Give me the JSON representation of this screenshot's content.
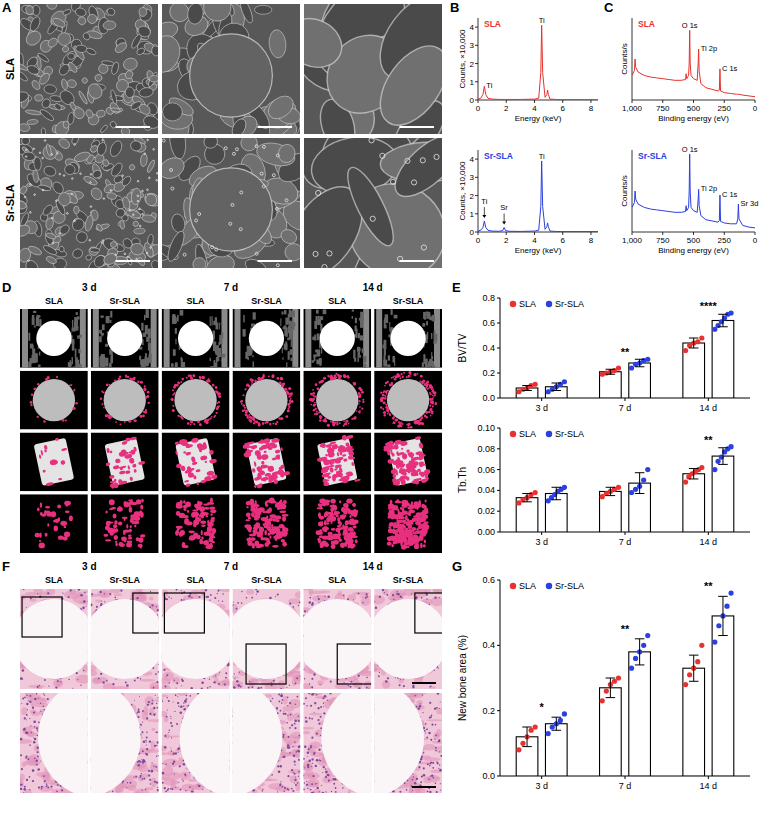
{
  "figure": {
    "panel_labels": [
      "A",
      "B",
      "C",
      "D",
      "E",
      "F",
      "G"
    ],
    "sem": {
      "rows": [
        "SLA",
        "Sr-SLA"
      ]
    },
    "ct": {
      "timepoints": [
        "3 d",
        "7 d",
        "14 d"
      ],
      "groups": [
        "SLA",
        "Sr-SLA"
      ]
    },
    "he": {
      "timepoints": [
        "3 d",
        "7 d",
        "14 d"
      ],
      "groups": [
        "SLA",
        "Sr-SLA"
      ]
    }
  },
  "chart_data": [
    {
      "type": "line",
      "title": "SLA",
      "color": "#e8322f",
      "x_label": "Energy (keV)",
      "y_label": "Counts, ×10,000",
      "x": [
        0,
        0.2,
        0.35,
        0.45,
        0.55,
        0.7,
        1,
        1.5,
        1.75,
        1.85,
        1.95,
        2.2,
        3,
        4,
        4.3,
        4.45,
        4.51,
        4.58,
        4.75,
        4.88,
        4.93,
        4.98,
        5.1,
        5.5,
        6,
        7,
        8,
        8.5
      ],
      "values": [
        0.05,
        0.1,
        0.3,
        0.75,
        0.3,
        0.1,
        0.05,
        0.03,
        0.03,
        0.03,
        0.03,
        0.03,
        0.03,
        0.05,
        0.1,
        1.5,
        4.1,
        1.5,
        0.15,
        0.3,
        0.55,
        0.3,
        0.05,
        0.03,
        0.02,
        0.02,
        0.02,
        0.02
      ],
      "xlim": [
        0,
        8.5
      ],
      "xticks": [
        0,
        2,
        4,
        6,
        8
      ],
      "ylim": [
        0,
        4.5
      ],
      "yticks": [
        0,
        1,
        2,
        3,
        4
      ],
      "annotations": [
        {
          "x": 0.45,
          "text": "Ti"
        },
        {
          "x": 4.51,
          "text": "Ti"
        }
      ]
    },
    {
      "type": "line",
      "title": "Sr-SLA",
      "color": "#2b40e0",
      "x_label": "Energy (keV)",
      "y_label": "Counts, ×10,000",
      "x": [
        0,
        0.2,
        0.35,
        0.45,
        0.55,
        0.7,
        1,
        1.5,
        1.75,
        1.85,
        1.95,
        2.2,
        3,
        4,
        4.3,
        4.45,
        4.51,
        4.58,
        4.75,
        4.88,
        4.93,
        4.98,
        5.1,
        5.5,
        6,
        7,
        8,
        8.5
      ],
      "values": [
        0.05,
        0.1,
        0.25,
        0.6,
        0.25,
        0.1,
        0.05,
        0.04,
        0.08,
        0.25,
        0.08,
        0.04,
        0.03,
        0.05,
        0.1,
        1.4,
        3.9,
        1.4,
        0.15,
        0.3,
        0.5,
        0.3,
        0.05,
        0.03,
        0.02,
        0.02,
        0.02,
        0.02
      ],
      "xlim": [
        0,
        8.5
      ],
      "xticks": [
        0,
        2,
        4,
        6,
        8
      ],
      "ylim": [
        0,
        4.5
      ],
      "yticks": [
        0,
        1,
        2,
        3,
        4
      ],
      "annotations": [
        {
          "x": 0.45,
          "text": "Ti"
        },
        {
          "x": 1.85,
          "text": "Sr"
        },
        {
          "x": 4.51,
          "text": "Ti"
        }
      ]
    },
    {
      "type": "line",
      "title": "SLA",
      "color": "#e8322f",
      "x_label": "Binding energy (eV)",
      "y_label": "Counts/s",
      "x": [
        1000,
        980,
        975,
        970,
        950,
        900,
        850,
        800,
        750,
        700,
        650,
        600,
        565,
        560,
        555,
        540,
        535,
        531,
        527,
        520,
        500,
        470,
        462,
        458,
        454,
        440,
        400,
        300,
        290,
        285,
        280,
        250,
        200,
        150,
        140,
        135,
        130,
        100,
        50,
        0
      ],
      "values": [
        0.3,
        0.36,
        0.5,
        0.4,
        0.34,
        0.3,
        0.28,
        0.27,
        0.26,
        0.25,
        0.24,
        0.24,
        0.25,
        0.32,
        0.26,
        0.3,
        0.45,
        0.85,
        0.45,
        0.3,
        0.26,
        0.24,
        0.45,
        0.62,
        0.35,
        0.2,
        0.15,
        0.11,
        0.12,
        0.38,
        0.11,
        0.09,
        0.08,
        0.07,
        0.07,
        0.07,
        0.07,
        0.06,
        0.05,
        0.04
      ],
      "xlim": [
        1000,
        0
      ],
      "xticks": [
        {
          "value": 1000,
          "label": "1,000"
        },
        750,
        500,
        250,
        0
      ],
      "ylim": [
        0,
        1
      ],
      "tick_labels": "x",
      "annotations": [
        {
          "x": 531,
          "text": "O 1s"
        },
        {
          "x": 458,
          "text": "Ti 2p"
        },
        {
          "x": 285,
          "text": "C 1s"
        }
      ]
    },
    {
      "type": "line",
      "title": "Sr-SLA",
      "color": "#2b40e0",
      "x_label": "Binding energy (eV)",
      "y_label": "Counts/s",
      "x": [
        1000,
        980,
        975,
        970,
        950,
        900,
        850,
        800,
        750,
        700,
        650,
        600,
        565,
        560,
        555,
        540,
        535,
        531,
        527,
        520,
        500,
        470,
        462,
        458,
        454,
        440,
        400,
        300,
        290,
        285,
        280,
        250,
        200,
        150,
        140,
        135,
        130,
        100,
        50,
        0
      ],
      "values": [
        0.3,
        0.36,
        0.5,
        0.4,
        0.34,
        0.3,
        0.28,
        0.27,
        0.26,
        0.25,
        0.24,
        0.24,
        0.25,
        0.32,
        0.26,
        0.3,
        0.5,
        0.95,
        0.5,
        0.3,
        0.26,
        0.24,
        0.4,
        0.52,
        0.32,
        0.2,
        0.15,
        0.12,
        0.14,
        0.45,
        0.13,
        0.11,
        0.1,
        0.1,
        0.16,
        0.34,
        0.16,
        0.08,
        0.06,
        0.05
      ],
      "xlim": [
        1000,
        0
      ],
      "xticks": [
        {
          "value": 1000,
          "label": "1,000"
        },
        750,
        500,
        250,
        0
      ],
      "ylim": [
        0,
        1
      ],
      "tick_labels": "x",
      "annotations": [
        {
          "x": 531,
          "text": "O 1s"
        },
        {
          "x": 458,
          "text": "Ti 2p"
        },
        {
          "x": 285,
          "text": "C 1s"
        },
        {
          "x": 135,
          "text": "Sr 3d"
        }
      ]
    },
    {
      "type": "bar",
      "y_label": "BV/TV",
      "categories": [
        "3 d",
        "7 d",
        "14 d"
      ],
      "ylim": [
        0,
        0.8
      ],
      "yticks": [
        {
          "value": 0,
          "label": "0.0"
        },
        0.2,
        0.4,
        0.6,
        0.8
      ],
      "legend": "top-left",
      "series": [
        {
          "name": "SLA",
          "color": "#e8322f",
          "values": [
            0.08,
            0.21,
            0.44
          ],
          "errors": [
            0.02,
            0.02,
            0.04
          ],
          "points": [
            [
              0.05,
              0.07,
              0.08,
              0.1,
              0.11
            ],
            [
              0.19,
              0.2,
              0.21,
              0.22,
              0.24
            ],
            [
              0.38,
              0.42,
              0.44,
              0.45,
              0.48
            ]
          ]
        },
        {
          "name": "Sr-SLA",
          "color": "#2b40e0",
          "values": [
            0.09,
            0.28,
            0.62
          ],
          "errors": [
            0.03,
            0.03,
            0.05
          ],
          "points": [
            [
              0.05,
              0.07,
              0.09,
              0.11,
              0.13
            ],
            [
              0.24,
              0.27,
              0.28,
              0.3,
              0.31
            ],
            [
              0.55,
              0.58,
              0.61,
              0.64,
              0.67,
              0.68
            ]
          ]
        }
      ],
      "annotations": [
        {
          "category": "7 d",
          "text": "**"
        },
        {
          "category": "14 d",
          "text": "****"
        }
      ]
    },
    {
      "type": "bar",
      "y_label": "Tb.Th",
      "categories": [
        "3 d",
        "7 d",
        "14 d"
      ],
      "ylim": [
        0,
        0.1
      ],
      "yticks": [
        {
          "value": 0,
          "label": "0.00"
        },
        0.02,
        0.04,
        0.06,
        0.08,
        {
          "value": 0.1,
          "label": "0.10"
        }
      ],
      "legend": "top-left",
      "series": [
        {
          "name": "SLA",
          "color": "#e8322f",
          "values": [
            0.033,
            0.039,
            0.056
          ],
          "errors": [
            0.004,
            0.004,
            0.005
          ],
          "points": [
            [
              0.028,
              0.031,
              0.033,
              0.036,
              0.038
            ],
            [
              0.034,
              0.037,
              0.039,
              0.041,
              0.043
            ],
            [
              0.048,
              0.053,
              0.056,
              0.058,
              0.06,
              0.062
            ]
          ]
        },
        {
          "name": "Sr-SLA",
          "color": "#2b40e0",
          "values": [
            0.037,
            0.047,
            0.073
          ],
          "errors": [
            0.006,
            0.01,
            0.008
          ],
          "points": [
            [
              0.03,
              0.033,
              0.036,
              0.039,
              0.041,
              0.043
            ],
            [
              0.038,
              0.041,
              0.044,
              0.05,
              0.06
            ],
            [
              0.06,
              0.068,
              0.072,
              0.077,
              0.08,
              0.082
            ]
          ]
        }
      ],
      "annotations": [
        {
          "category": "14 d",
          "text": "**"
        }
      ]
    },
    {
      "type": "bar",
      "y_label": "New bone area (%)",
      "categories": [
        "3 d",
        "7 d",
        "14 d"
      ],
      "ylim": [
        0,
        0.6
      ],
      "yticks": [
        {
          "value": 0,
          "label": "0.0"
        },
        0.2,
        0.4,
        0.6
      ],
      "legend": "top-left",
      "series": [
        {
          "name": "SLA",
          "color": "#e8322f",
          "values": [
            0.12,
            0.27,
            0.33
          ],
          "errors": [
            0.03,
            0.03,
            0.04
          ],
          "points": [
            [
              0.08,
              0.1,
              0.12,
              0.14,
              0.15
            ],
            [
              0.23,
              0.26,
              0.28,
              0.29,
              0.3
            ],
            [
              0.28,
              0.31,
              0.33,
              0.35,
              0.4
            ]
          ]
        },
        {
          "name": "Sr-SLA",
          "color": "#2b40e0",
          "values": [
            0.16,
            0.38,
            0.49
          ],
          "errors": [
            0.02,
            0.04,
            0.06
          ],
          "points": [
            [
              0.13,
              0.15,
              0.16,
              0.17,
              0.19
            ],
            [
              0.33,
              0.36,
              0.38,
              0.4,
              0.43
            ],
            [
              0.41,
              0.46,
              0.49,
              0.52,
              0.56
            ]
          ]
        }
      ],
      "annotations": [
        {
          "category": "3 d",
          "text": "*"
        },
        {
          "category": "7 d",
          "text": "**"
        },
        {
          "category": "14 d",
          "text": "**"
        }
      ]
    }
  ]
}
